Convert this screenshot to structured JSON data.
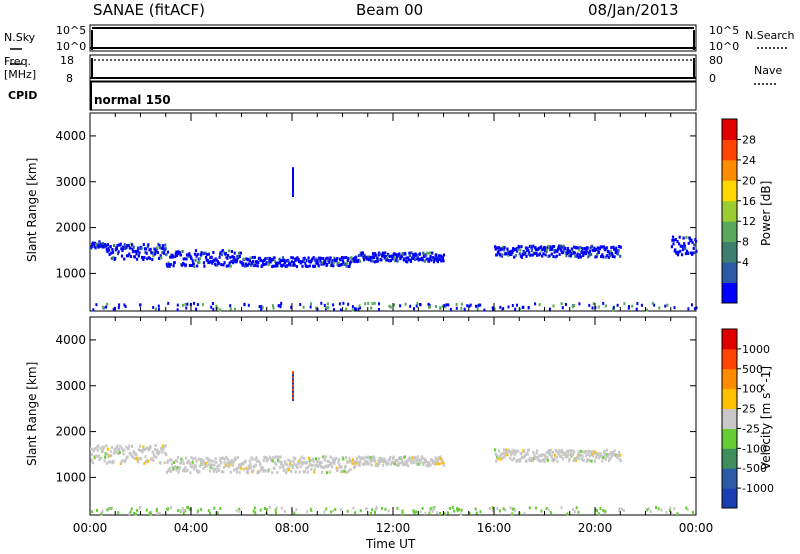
{
  "header": {
    "station": "SANAE (fitACF)",
    "beam": "Beam 00",
    "date": "08/Jan/2013"
  },
  "strip": {
    "nsky_label": "N.Sky",
    "nsky_ticks": [
      "10^5",
      "10^0"
    ],
    "nsearch_label": "N.Search",
    "nsearch_ticks": [
      "10^5",
      "10^0"
    ],
    "freq_label": "Freq.",
    "freq_unit": "[MHz]",
    "freq_ticks": [
      "18",
      "8"
    ],
    "nave_label": "Nave",
    "nave_ticks": [
      "80",
      "0"
    ],
    "cpid_label": "CPID",
    "cpid_value": "normal 150"
  },
  "chart_data": [
    {
      "type": "heatmap",
      "parameter": "Power",
      "ylabel": "Slant Range [km]",
      "ylim": [
        180,
        4500
      ],
      "yticks": [
        "4000",
        "3000",
        "2000",
        "1000"
      ],
      "colorbar_label": "Power [dB]",
      "colorbar_ticks": [
        "28",
        "24",
        "20",
        "16",
        "12",
        "8",
        "4"
      ],
      "colorbar_colors": [
        "#0000ff",
        "#2c5aa8",
        "#3e7e6e",
        "#5aa85a",
        "#9acd32",
        "#ffd700",
        "#ff8c00",
        "#ff4500",
        "#e00000"
      ],
      "echo_bands": [
        {
          "x_start": 0.0,
          "x_end": 0.6,
          "range_top": 1700,
          "range_bottom": 1550,
          "note": "blue-green"
        },
        {
          "x_start": 0.6,
          "x_end": 3.0,
          "range_top": 1650,
          "range_bottom": 1300
        },
        {
          "x_start": 3.0,
          "x_end": 6.0,
          "range_top": 1500,
          "range_bottom": 1150
        },
        {
          "x_start": 6.0,
          "x_end": 10.5,
          "range_top": 1350,
          "range_bottom": 1150
        },
        {
          "x_start": 10.5,
          "x_end": 14.0,
          "range_top": 1450,
          "range_bottom": 1250
        },
        {
          "x_start": 16.0,
          "x_end": 21.0,
          "range_top": 1600,
          "range_bottom": 1350
        },
        {
          "x_start": 23.0,
          "x_end": 24.0,
          "range_top": 1800,
          "range_bottom": 1400
        }
      ]
    },
    {
      "type": "heatmap",
      "parameter": "Velocity",
      "ylabel": "Slant Range [km]",
      "ylim": [
        180,
        4500
      ],
      "yticks": [
        "4000",
        "3000",
        "2000",
        "1000"
      ],
      "colorbar_label": "Velocity [m s^-1]",
      "colorbar_ticks": [
        "1000",
        "500",
        "100",
        "25",
        "-25",
        "-100",
        "-500",
        "-1000"
      ],
      "colorbar_colors": [
        "#1a3fb3",
        "#2c5aa8",
        "#3e8e5e",
        "#66cc33",
        "#c8c8c8",
        "#ffc000",
        "#ff8c00",
        "#ff4500",
        "#e00000"
      ],
      "echo_bands": [
        {
          "x_start": 0.0,
          "x_end": 3.0,
          "range_top": 1700,
          "range_bottom": 1300,
          "note": "grey near-zero velocity"
        },
        {
          "x_start": 3.0,
          "x_end": 10.5,
          "range_top": 1450,
          "range_bottom": 1100
        },
        {
          "x_start": 10.5,
          "x_end": 14.0,
          "range_top": 1450,
          "range_bottom": 1250
        },
        {
          "x_start": 16.0,
          "x_end": 21.0,
          "range_top": 1600,
          "range_bottom": 1350
        }
      ]
    }
  ],
  "xaxis": {
    "label": "Time UT",
    "xlim": [
      0,
      24
    ],
    "ticks": [
      "00:00",
      "04:00",
      "08:00",
      "12:00",
      "16:00",
      "20:00",
      "00:00"
    ]
  }
}
